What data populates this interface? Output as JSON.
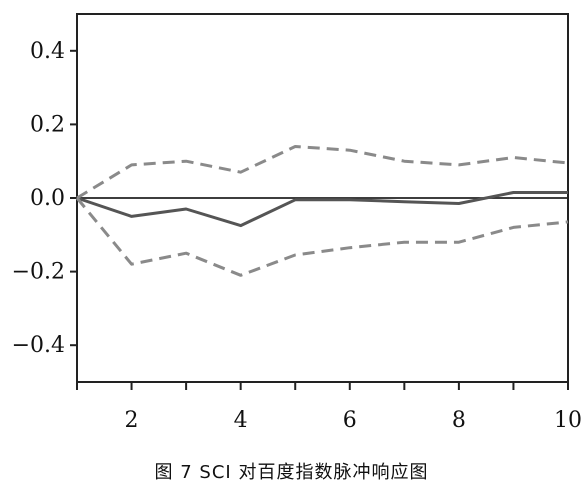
{
  "chart_data": {
    "type": "line",
    "title": "",
    "xlabel": "",
    "ylabel": "",
    "xlim": [
      1,
      10
    ],
    "ylim": [
      -0.5,
      0.5
    ],
    "x_ticks": [
      "2",
      "4",
      "6",
      "8",
      "10"
    ],
    "y_ticks": [
      "0.4",
      "0.2",
      "0.0",
      "−0.2",
      "−0.4"
    ],
    "grid": false,
    "legend": "none",
    "reference_line": 0.0,
    "x": [
      1,
      2,
      3,
      4,
      5,
      6,
      7,
      8,
      9,
      10
    ],
    "series": [
      {
        "style": "solid",
        "color": "#555555",
        "values": [
          0.0,
          -0.05,
          -0.03,
          -0.075,
          -0.005,
          -0.005,
          -0.01,
          -0.015,
          0.015,
          0.015
        ]
      },
      {
        "style": "dashed",
        "color": "#8a8a8a",
        "values": [
          0.0,
          0.09,
          0.1,
          0.07,
          0.14,
          0.13,
          0.1,
          0.09,
          0.11,
          0.095
        ]
      },
      {
        "style": "dashed",
        "color": "#8a8a8a",
        "values": [
          0.0,
          -0.18,
          -0.15,
          -0.21,
          -0.155,
          -0.135,
          -0.12,
          -0.12,
          -0.08,
          -0.065
        ]
      }
    ]
  },
  "caption": "图 7   SCI 对百度指数脉冲响应图"
}
